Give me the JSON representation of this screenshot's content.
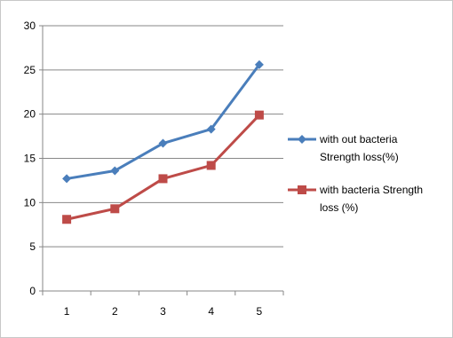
{
  "chart_data": {
    "type": "line",
    "title": "",
    "xlabel": "",
    "ylabel": "",
    "categories": [
      "1",
      "2",
      "3",
      "4",
      "5"
    ],
    "ylim": [
      0,
      30
    ],
    "yticks": [
      "0",
      "5",
      "10",
      "15",
      "20",
      "25",
      "30"
    ],
    "grid": "horizontal",
    "legend_position": "right",
    "series": [
      {
        "name": "with out bacteria Strength loss(%)",
        "name_lines": [
          "with out bacteria",
          "Strength loss(%)"
        ],
        "values": [
          12.7,
          13.6,
          16.7,
          18.3,
          25.6
        ],
        "color": "#4a7ebb",
        "marker": "diamond"
      },
      {
        "name": "with bacteria Strength loss (%)",
        "name_lines": [
          "with bacteria Strength",
          "loss (%)"
        ],
        "values": [
          8.1,
          9.3,
          12.7,
          14.2,
          19.9
        ],
        "color": "#be4b48",
        "marker": "square"
      }
    ]
  }
}
